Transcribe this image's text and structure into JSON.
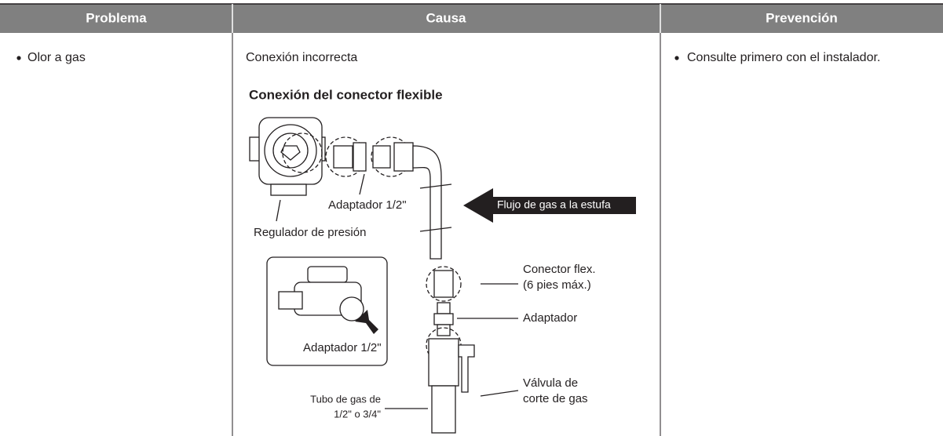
{
  "table": {
    "headers": [
      "Problema",
      "Causa",
      "Prevención"
    ],
    "rows": [
      [
        "Olor a gas",
        "Conexión incorrecta",
        "Consulte primero con el instalador."
      ]
    ]
  },
  "diagram": {
    "title": "Conexión del conector flexible",
    "labels": {
      "adapter_top": "Adaptador 1/2\"",
      "regulator": "Regulador de presión",
      "flow": "Flujo de gas a la estufa",
      "connector_1": "Conector flex.",
      "connector_2": "(6 pies máx.)",
      "adapter": "Adaptador",
      "valve_1": "Válvula de",
      "valve_2": "corte de gas",
      "pipe_1": "Tubo de gas de",
      "pipe_2": "1/2\" o 3/4\"",
      "adapter_inset": "Adaptador 1/2\""
    }
  }
}
